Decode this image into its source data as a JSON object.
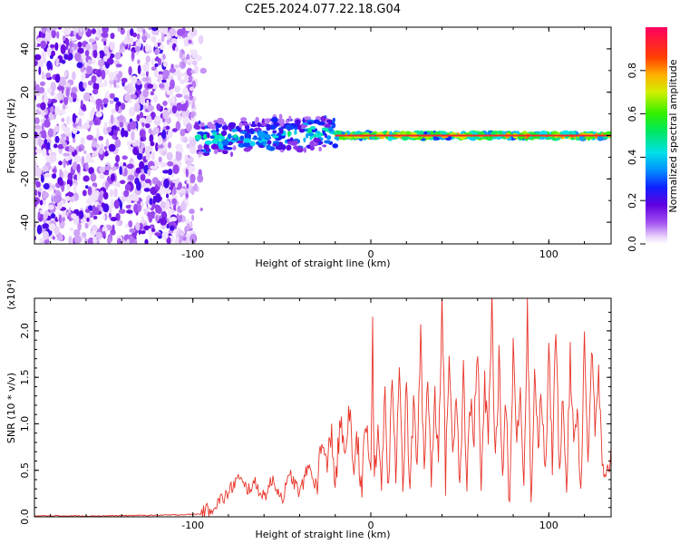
{
  "title": "C2E5.2024.077.22.18.G04",
  "chart_data": [
    {
      "type": "heatmap",
      "title": "C2E5.2024.077.22.18.G04",
      "xlabel": "Height of straight line (km)",
      "ylabel": "Frequency (Hz)",
      "xlim": [
        -189,
        135
      ],
      "ylim": [
        -50,
        50
      ],
      "xticks": [
        -100,
        0,
        100
      ],
      "yticks": [
        -40,
        -20,
        0,
        20,
        40
      ],
      "colorbar": {
        "label": "Normalized spectral amplitude",
        "range": [
          0.0,
          1.0
        ],
        "ticks": [
          0.0,
          0.2,
          0.4,
          0.6,
          0.8
        ],
        "tick_labels": [
          "0.0",
          "0.2",
          "0.4",
          "0.6",
          "0.8"
        ]
      },
      "features": {
        "noise_region_x": [
          -189,
          -98
        ],
        "signal_band_x": [
          -98,
          135
        ],
        "signal_center_freq": 0
      }
    },
    {
      "type": "line",
      "xlabel": "Height of straight line (km)",
      "ylabel": "SNR (10 * v/v)",
      "scale_label": "(x10⁴)",
      "xlim": [
        -189,
        135
      ],
      "ylim": [
        0,
        2.35
      ],
      "xticks": [
        -100,
        0,
        100
      ],
      "yticks": [
        0.0,
        0.5,
        1.0,
        1.5,
        2.0
      ],
      "ytick_labels": [
        "0.0",
        "0.5",
        "1.0",
        "1.5",
        "2.0"
      ],
      "series": [
        {
          "color": "#e8352a",
          "x": [
            -189,
            -150,
            -110,
            -95,
            -88,
            -80,
            -75,
            -70,
            -65,
            -60,
            -55,
            -50,
            -45,
            -40,
            -35,
            -30,
            -28,
            -25,
            -22,
            -20,
            -17,
            -15,
            -12,
            -10,
            -8,
            -5,
            -3,
            0,
            1,
            2,
            4,
            6,
            8,
            10,
            12,
            14,
            16,
            18,
            20,
            22,
            24,
            26,
            28,
            30,
            32,
            34,
            36,
            38,
            40,
            42,
            44,
            46,
            48,
            50,
            52,
            54,
            56,
            58,
            60,
            62,
            64,
            66,
            68,
            70,
            72,
            74,
            76,
            78,
            80,
            82,
            84,
            86,
            88,
            90,
            92,
            94,
            96,
            98,
            100,
            102,
            104,
            106,
            108,
            110,
            112,
            114,
            116,
            118,
            120,
            122,
            124,
            126,
            128,
            130,
            132,
            135
          ],
          "y": [
            0.01,
            0.01,
            0.02,
            0.03,
            0.12,
            0.25,
            0.42,
            0.3,
            0.35,
            0.22,
            0.4,
            0.2,
            0.45,
            0.25,
            0.55,
            0.3,
            0.85,
            0.5,
            0.95,
            0.3,
            1.05,
            0.6,
            1.2,
            0.4,
            0.9,
            0.3,
            1.0,
            0.5,
            2.05,
            0.35,
            0.9,
            0.4,
            1.3,
            0.2,
            1.6,
            0.45,
            1.75,
            0.3,
            1.4,
            0.25,
            1.2,
            0.6,
            1.9,
            0.5,
            1.55,
            0.4,
            1.3,
            0.7,
            2.35,
            0.4,
            1.8,
            0.6,
            1.45,
            0.3,
            1.6,
            0.35,
            1.25,
            0.9,
            1.8,
            0.3,
            1.4,
            0.8,
            2.33,
            0.5,
            1.7,
            0.45,
            1.3,
            0.05,
            1.9,
            0.7,
            1.5,
            0.3,
            2.33,
            0.05,
            1.6,
            0.8,
            1.3,
            0.4,
            1.75,
            0.6,
            2.0,
            0.5,
            1.4,
            0.3,
            1.7,
            0.85,
            1.2,
            0.25,
            1.95,
            0.6,
            1.8,
            0.9,
            1.55,
            0.5,
            0.3,
            0.75
          ]
        }
      ]
    }
  ]
}
